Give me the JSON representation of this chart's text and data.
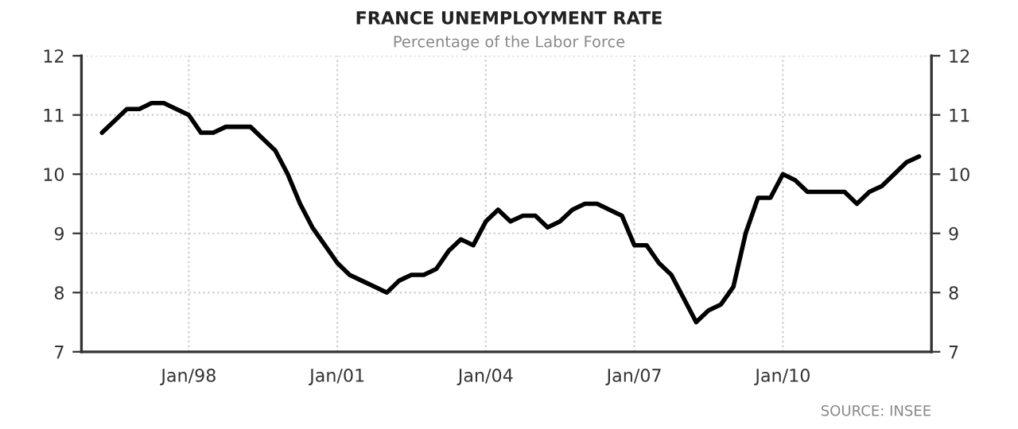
{
  "chart_data": {
    "type": "line",
    "title": "FRANCE UNEMPLOYMENT RATE",
    "subtitle": "Percentage of the Labor Force",
    "x": [
      "1996-04",
      "1996-07",
      "1996-10",
      "1997-01",
      "1997-04",
      "1997-07",
      "1997-10",
      "1998-01",
      "1998-04",
      "1998-07",
      "1998-10",
      "1999-01",
      "1999-04",
      "1999-07",
      "1999-10",
      "2000-01",
      "2000-04",
      "2000-07",
      "2000-10",
      "2001-01",
      "2001-04",
      "2001-07",
      "2001-10",
      "2002-01",
      "2002-04",
      "2002-07",
      "2002-10",
      "2003-01",
      "2003-04",
      "2003-07",
      "2003-10",
      "2004-01",
      "2004-04",
      "2004-07",
      "2004-10",
      "2005-01",
      "2005-04",
      "2005-07",
      "2005-10",
      "2006-01",
      "2006-04",
      "2006-07",
      "2006-10",
      "2007-01",
      "2007-04",
      "2007-07",
      "2007-10",
      "2008-01",
      "2008-04",
      "2008-07",
      "2008-10",
      "2009-01",
      "2009-04",
      "2009-07",
      "2009-10",
      "2010-01",
      "2010-04",
      "2010-07",
      "2010-10",
      "2011-01",
      "2011-04",
      "2011-07",
      "2011-10",
      "2012-01",
      "2012-04",
      "2012-07",
      "2012-10"
    ],
    "series": [
      {
        "color": "#000000",
        "values": [
          10.7,
          10.9,
          11.1,
          11.1,
          11.2,
          11.2,
          11.1,
          11.0,
          10.7,
          10.7,
          10.8,
          10.8,
          10.8,
          10.6,
          10.4,
          10.0,
          9.5,
          9.1,
          8.8,
          8.5,
          8.3,
          8.2,
          8.1,
          8.0,
          8.2,
          8.3,
          8.3,
          8.4,
          8.7,
          8.9,
          8.8,
          9.2,
          9.4,
          9.2,
          9.3,
          9.3,
          9.1,
          9.2,
          9.4,
          9.5,
          9.5,
          9.4,
          9.3,
          8.8,
          8.8,
          8.5,
          8.3,
          7.9,
          7.5,
          7.7,
          7.8,
          8.1,
          9.0,
          9.6,
          9.6,
          10.0,
          9.9,
          9.7,
          9.7,
          9.7,
          9.7,
          9.5,
          9.7,
          9.8,
          10.0,
          10.2,
          10.3
        ]
      }
    ],
    "xlim": [
      "1995-11",
      "2013-01"
    ],
    "xticks": [
      {
        "value": "1998-01",
        "label": "Jan/98"
      },
      {
        "value": "2001-01",
        "label": "Jan/01"
      },
      {
        "value": "2004-01",
        "label": "Jan/04"
      },
      {
        "value": "2007-01",
        "label": "Jan/07"
      },
      {
        "value": "2010-01",
        "label": "Jan/10"
      }
    ],
    "ylim": [
      7,
      12
    ],
    "yticks": [
      7,
      8,
      9,
      10,
      11,
      12
    ],
    "y2lim": [
      7,
      12
    ],
    "y2ticks": [
      7,
      8,
      9,
      10,
      11,
      12
    ],
    "grid": true,
    "legend": false,
    "marker": "none",
    "line_style": "solid",
    "annotations": [
      "SOURCE: INSEE"
    ]
  }
}
